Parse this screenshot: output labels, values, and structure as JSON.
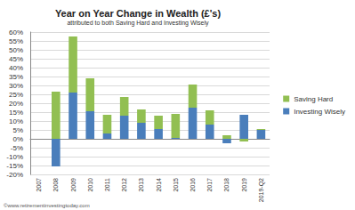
{
  "chart_data": {
    "type": "bar",
    "title": "Year on Year Change in Wealth (£'s)",
    "subtitle": "attributed to both Saving Hard and Investing Wisely",
    "annotations": [
      "©www.retirementinvestingtoday.com"
    ],
    "categories": [
      "2007",
      "2008",
      "2009",
      "2010",
      "2011",
      "2012",
      "2013",
      "2014",
      "2015",
      "2016",
      "2017",
      "2018",
      "2019",
      "2019-Q2"
    ],
    "series": [
      {
        "name": "Investing Wisely",
        "color": "#4a7ebb",
        "values": [
          0,
          -15.5,
          26,
          15.5,
          3,
          13,
          9,
          5.5,
          0.5,
          17.5,
          8,
          -2.5,
          13.5,
          5
        ]
      },
      {
        "name": "Saving Hard",
        "color": "#92bf52",
        "values": [
          0,
          26.5,
          31.5,
          18.5,
          10.5,
          10.5,
          7.5,
          7.5,
          13.5,
          13,
          8,
          2,
          -1.5,
          0.5
        ]
      }
    ],
    "stacked": true,
    "ylim": [
      -20,
      60
    ],
    "yticks": [
      {
        "value": -20,
        "label": "-20%"
      },
      {
        "value": -15,
        "label": "-15%"
      },
      {
        "value": -10,
        "label": "-10%"
      },
      {
        "value": -5,
        "label": "-5%"
      },
      {
        "value": 0,
        "label": "0%"
      },
      {
        "value": 5,
        "label": "5%"
      },
      {
        "value": 10,
        "label": "10%"
      },
      {
        "value": 15,
        "label": "15%"
      },
      {
        "value": 20,
        "label": "20%"
      },
      {
        "value": 25,
        "label": "25%"
      },
      {
        "value": 30,
        "label": "30%"
      },
      {
        "value": 35,
        "label": "35%"
      },
      {
        "value": 40,
        "label": "40%"
      },
      {
        "value": 45,
        "label": "45%"
      },
      {
        "value": 50,
        "label": "50%"
      },
      {
        "value": 55,
        "label": "55%"
      },
      {
        "value": 60,
        "label": "60%"
      }
    ],
    "grid": true,
    "legend": "right"
  }
}
